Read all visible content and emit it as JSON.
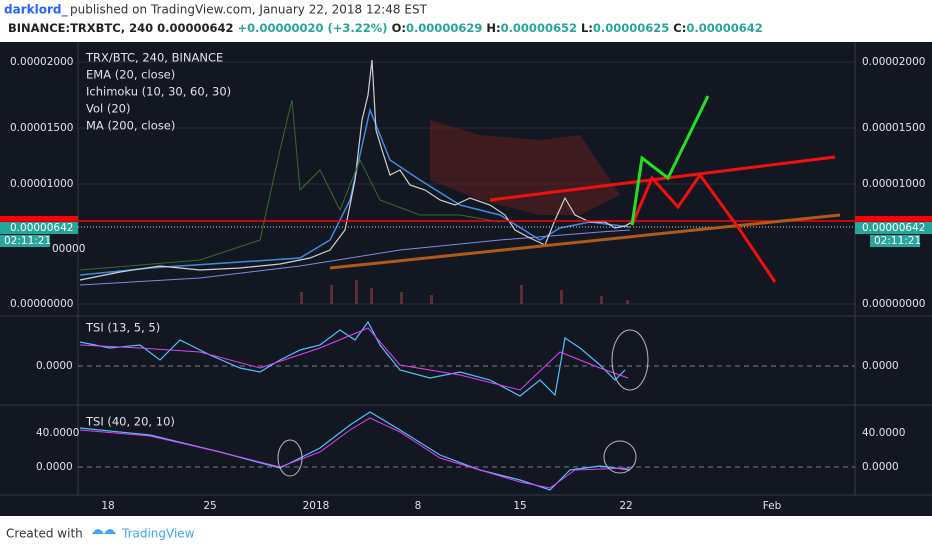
{
  "header": {
    "author": "darklord_",
    "published": "published on TradingView.com, January 22, 2018 12:48 EST",
    "symbol": "BINANCE:TRXBTC, 240",
    "price": "0.00000642",
    "change": "+0.00000020 (+3.22%)",
    "ohlc": [
      {
        "label": "O:",
        "value": "0.00000629"
      },
      {
        "label": "H:",
        "value": "0.00000652"
      },
      {
        "label": "L:",
        "value": "0.00000625"
      },
      {
        "label": "C:",
        "value": "0.00000642"
      }
    ]
  },
  "main_pane": {
    "legend": [
      "TRX/BTC, 240, BINANCE",
      "EMA (20, close)",
      "Ichimoku (10, 30, 60, 30)",
      "Vol (20)",
      "MA (200, close)"
    ],
    "axis_labels": [
      "0.00002000",
      "0.00001500",
      "0.00001000",
      "0.00000000"
    ],
    "price_tag": "0.00000642",
    "countdown": "02:11:21",
    "partial_label": "00000"
  },
  "tsi_pane_1": {
    "legend": "TSI (13, 5, 5)",
    "axis_labels": [
      "0.0000"
    ]
  },
  "tsi_pane_2": {
    "legend": "TSI (40, 20, 10)",
    "axis_labels": [
      "40.0000",
      "0.0000"
    ]
  },
  "x_axis": [
    "18",
    "25",
    "2018",
    "8",
    "15",
    "22",
    "Feb"
  ],
  "footer": {
    "created_with": "Created with",
    "brand": "TradingView"
  }
}
